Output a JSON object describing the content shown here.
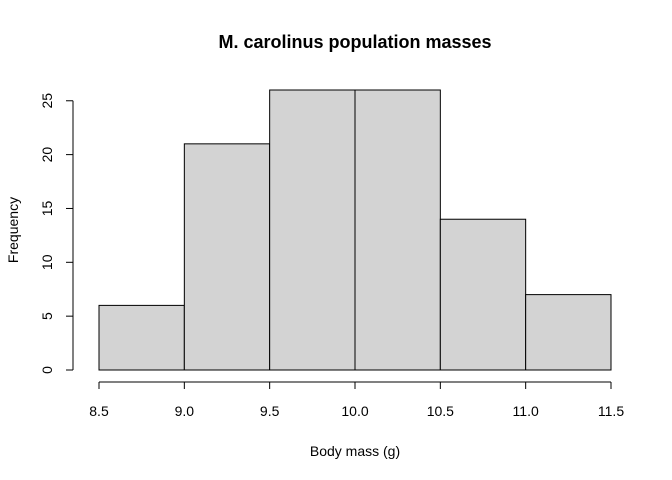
{
  "chart_data": {
    "type": "bar",
    "title": "M. carolinus population masses",
    "xlabel": "Body mass (g)",
    "ylabel": "Frequency",
    "bins": [
      {
        "start": 8.5,
        "end": 9.0,
        "value": 6
      },
      {
        "start": 9.0,
        "end": 9.5,
        "value": 21
      },
      {
        "start": 9.5,
        "end": 10.0,
        "value": 26
      },
      {
        "start": 10.0,
        "end": 10.5,
        "value": 26
      },
      {
        "start": 10.5,
        "end": 11.0,
        "value": 14
      },
      {
        "start": 11.0,
        "end": 11.5,
        "value": 7
      }
    ],
    "xlim": [
      8.5,
      11.5
    ],
    "ylim": [
      0,
      26
    ],
    "x_ticks": [
      "8.5",
      "9.0",
      "9.5",
      "10.0",
      "10.5",
      "11.0",
      "11.5"
    ],
    "y_ticks": [
      "0",
      "5",
      "10",
      "15",
      "20",
      "25"
    ],
    "bar_color": "#d3d3d3",
    "grid": false
  }
}
